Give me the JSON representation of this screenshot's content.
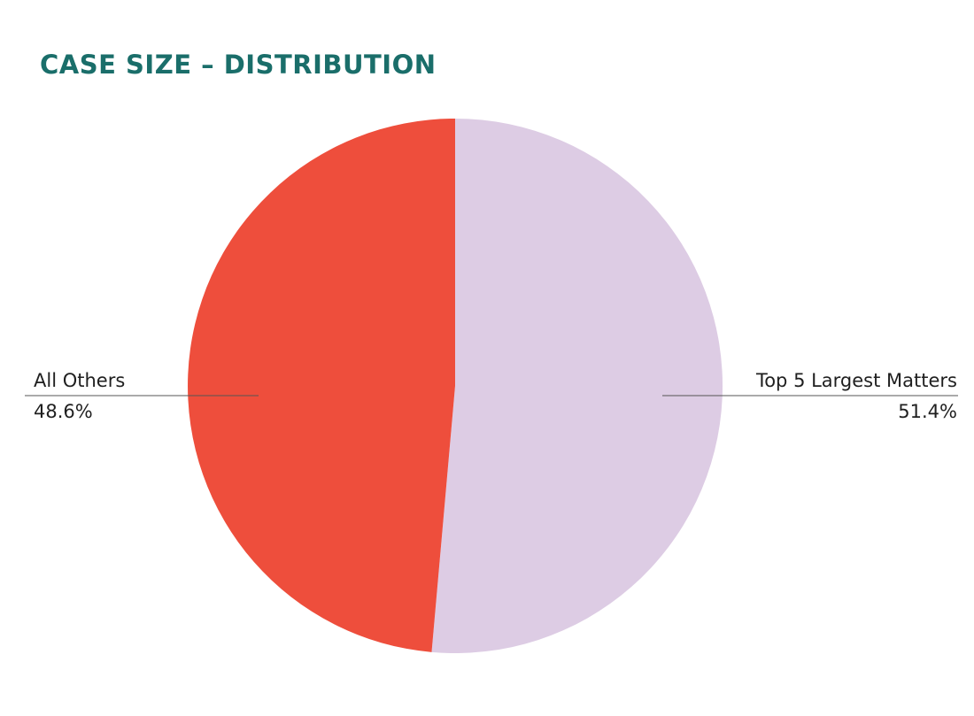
{
  "chart_data": {
    "type": "pie",
    "title": "CASE SIZE – DISTRIBUTION",
    "slices": [
      {
        "label": "Top 5 Largest Matters",
        "value": 51.4,
        "value_label": "51.4%",
        "color": "#ddcce4"
      },
      {
        "label": "All Others",
        "value": 48.6,
        "value_label": "48.6%",
        "color": "#ee4e3c"
      }
    ],
    "start_angle": "12 o'clock",
    "direction": "clockwise",
    "legend": "none",
    "labels_placement": "outside with leader lines"
  }
}
